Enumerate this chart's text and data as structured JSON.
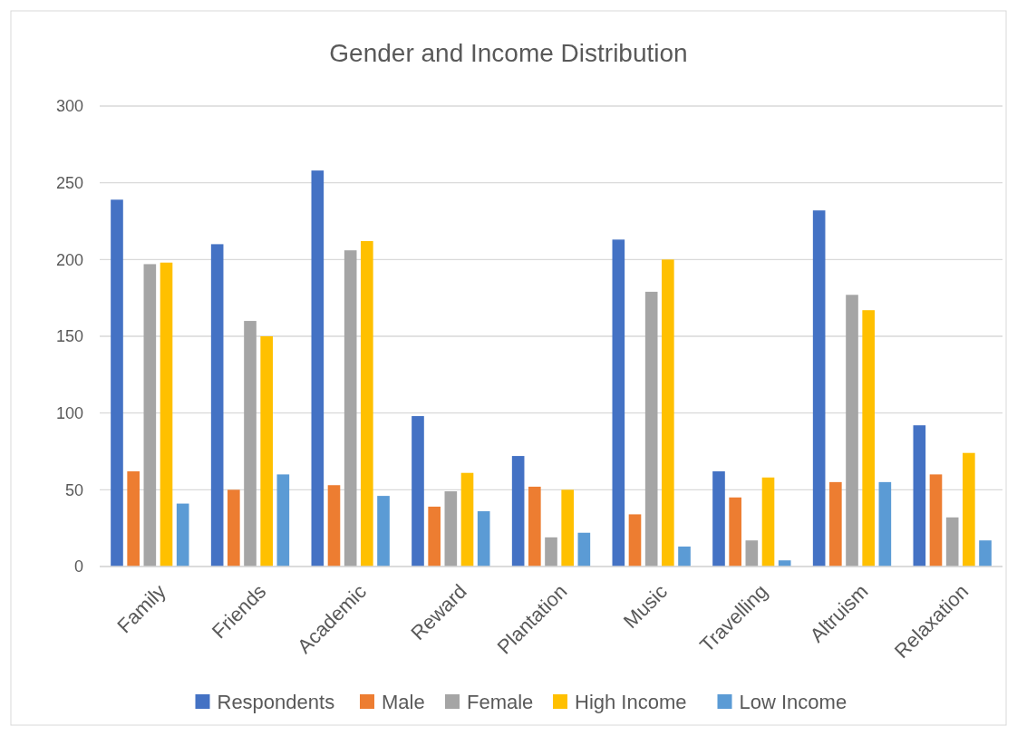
{
  "chart_data": {
    "type": "bar",
    "title": "Gender and Income Distribution",
    "categories": [
      "Family",
      "Friends",
      "Academic",
      "Reward",
      "Plantation",
      "Music",
      "Travelling",
      "Altruism",
      "Relaxation"
    ],
    "series": [
      {
        "name": "Respondents",
        "color": "#4472c4",
        "values": [
          239,
          210,
          258,
          98,
          72,
          213,
          62,
          232,
          92
        ]
      },
      {
        "name": "Male",
        "color": "#ed7d31",
        "values": [
          62,
          50,
          53,
          39,
          52,
          34,
          45,
          55,
          60
        ]
      },
      {
        "name": "Female",
        "color": "#a5a5a5",
        "values": [
          197,
          160,
          206,
          49,
          19,
          179,
          17,
          177,
          32
        ]
      },
      {
        "name": "High Income",
        "color": "#ffc000",
        "values": [
          198,
          150,
          212,
          61,
          50,
          200,
          58,
          167,
          74
        ]
      },
      {
        "name": "Low Income",
        "color": "#5b9bd5",
        "values": [
          41,
          60,
          46,
          36,
          22,
          13,
          4,
          55,
          17
        ]
      }
    ],
    "ylim": [
      0,
      300
    ],
    "yticks": [
      0,
      50,
      100,
      150,
      200,
      250,
      300
    ],
    "grid": "y",
    "legend": "bottom"
  }
}
